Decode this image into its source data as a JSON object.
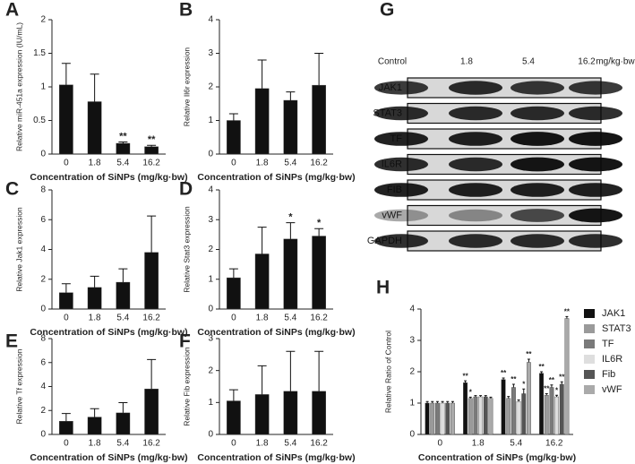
{
  "chart_data": [
    {
      "type": "bar",
      "panel": "A",
      "ylabel": "Relative miR-451a expression (IU/mL)",
      "xlabel": "Concentration of SiNPs (mg/kg·bw)",
      "categories": [
        "0",
        "1.8",
        "5.4",
        "16.2"
      ],
      "values": [
        1.03,
        0.78,
        0.16,
        0.11
      ],
      "errors": [
        0.32,
        0.41,
        0.02,
        0.02
      ],
      "annotations": [
        null,
        null,
        "**",
        "**"
      ],
      "color": "#111111",
      "ylim": [
        0,
        2
      ],
      "yticks": [
        0,
        0.5,
        1,
        1.5,
        2
      ]
    },
    {
      "type": "bar",
      "panel": "B",
      "ylabel": "Relative Il6r expression",
      "xlabel": "Concentration of SiNPs (mg/kg·bw)",
      "categories": [
        "0",
        "1.8",
        "5.4",
        "16.2"
      ],
      "values": [
        1.0,
        1.95,
        1.6,
        2.05
      ],
      "errors": [
        0.2,
        0.85,
        0.25,
        0.95
      ],
      "color": "#111111",
      "ylim": [
        0,
        4
      ],
      "yticks": [
        0,
        1,
        2,
        3,
        4
      ]
    },
    {
      "type": "bar",
      "panel": "C",
      "ylabel": "Relative Jak1 expression",
      "xlabel": "Concentration of SiNPs (mg/kg·bw)",
      "categories": [
        "0",
        "1.8",
        "5.4",
        "16.2"
      ],
      "values": [
        1.1,
        1.45,
        1.8,
        3.8
      ],
      "errors": [
        0.6,
        0.75,
        0.9,
        2.45
      ],
      "color": "#111111",
      "ylim": [
        0,
        8
      ],
      "yticks": [
        0,
        2,
        4,
        6,
        8
      ]
    },
    {
      "type": "bar",
      "panel": "D",
      "ylabel": "Relative Stat3 expression",
      "xlabel": "Concentration of SiNPs (mg/kg·bw)",
      "categories": [
        "0",
        "1.8",
        "5.4",
        "16.2"
      ],
      "values": [
        1.05,
        1.85,
        2.35,
        2.45
      ],
      "errors": [
        0.3,
        0.9,
        0.55,
        0.25
      ],
      "annotations": [
        null,
        null,
        "*",
        "*"
      ],
      "color": "#111111",
      "ylim": [
        0,
        4
      ],
      "yticks": [
        0,
        1,
        2,
        3,
        4
      ]
    },
    {
      "type": "bar",
      "panel": "E",
      "ylabel": "Relative Tf expression",
      "xlabel": "Concentration of SiNPs (mg/kg·bw)",
      "categories": [
        "0",
        "1.8",
        "5.4",
        "16.2"
      ],
      "values": [
        1.1,
        1.45,
        1.8,
        3.8
      ],
      "errors": [
        0.65,
        0.7,
        0.85,
        2.45
      ],
      "color": "#111111",
      "ylim": [
        0,
        8
      ],
      "yticks": [
        0,
        2,
        4,
        6,
        8
      ]
    },
    {
      "type": "bar",
      "panel": "F",
      "ylabel": "Relative Fib expression",
      "xlabel": "Concentration of SiNPs (mg/kg·bw)",
      "categories": [
        "0",
        "1.8",
        "5.4",
        "16.2"
      ],
      "values": [
        1.05,
        1.25,
        1.35,
        1.35
      ],
      "errors": [
        0.35,
        0.9,
        1.25,
        1.25
      ],
      "color": "#111111",
      "ylim": [
        0,
        3
      ],
      "yticks": [
        0,
        1,
        2,
        3
      ]
    },
    {
      "type": "bar",
      "panel": "H",
      "ylabel": "Relative Ratio of Control",
      "xlabel": "Concentration of SiNPs (mg/kg·bw)",
      "categories": [
        "0",
        "1.8",
        "5.4",
        "16.2"
      ],
      "ylim": [
        0,
        4
      ],
      "yticks": [
        0,
        1,
        2,
        3,
        4
      ],
      "series": [
        {
          "name": "JAK1",
          "color": "#111111",
          "values": [
            1,
            1.65,
            1.75,
            1.95
          ],
          "errors": [
            0.05,
            0.06,
            0.05,
            0.05
          ],
          "annotations": [
            null,
            "**",
            "**",
            "**"
          ]
        },
        {
          "name": "STAT3",
          "color": "#9a9a9a",
          "values": [
            1,
            1.15,
            1.15,
            1.25
          ],
          "errors": [
            0.05,
            0.04,
            0.06,
            0.05
          ],
          "annotations": [
            null,
            "*",
            null,
            "**"
          ]
        },
        {
          "name": "TF",
          "color": "#7a7a7a",
          "values": [
            1,
            1.2,
            1.5,
            1.5
          ],
          "errors": [
            0.05,
            0.04,
            0.1,
            0.08
          ],
          "annotations": [
            null,
            null,
            "**",
            "**"
          ]
        },
        {
          "name": "IL6R",
          "color": "#dedede",
          "values": [
            1,
            1.2,
            1.05,
            1.2
          ],
          "errors": [
            0.05,
            0.04,
            0.05,
            0.05
          ],
          "annotations": [
            null,
            null,
            null,
            "*"
          ]
        },
        {
          "name": "Fib",
          "color": "#555555",
          "values": [
            1,
            1.2,
            1.3,
            1.6
          ],
          "errors": [
            0.05,
            0.04,
            0.15,
            0.08
          ],
          "annotations": [
            null,
            null,
            "*",
            "**"
          ]
        },
        {
          "name": "vWF",
          "color": "#aaaaaa",
          "values": [
            1,
            1.15,
            2.3,
            3.7
          ],
          "errors": [
            0.05,
            0.04,
            0.1,
            0.06
          ],
          "annotations": [
            null,
            null,
            "**",
            "**"
          ]
        }
      ]
    }
  ],
  "blot": {
    "panel": "G",
    "columns": [
      "Control",
      "1.8",
      "5.4",
      "16.2"
    ],
    "unit": "mg/kg·bw",
    "rows": [
      "JAK1",
      "STAT3",
      "TF",
      "IL6R",
      "FIB",
      "vWF",
      "GAPDH"
    ]
  }
}
